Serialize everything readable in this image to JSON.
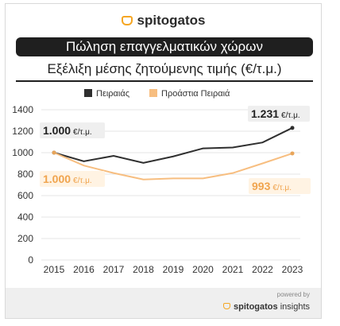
{
  "brand": {
    "name": "spitogatos"
  },
  "header": {
    "title": "Πώληση επαγγελματικών χώρων",
    "subtitle": "Εξέλιξη μέσης ζητούμενης τιμής (€/τ.μ.)"
  },
  "footer": {
    "powered": "powered by",
    "brand": "spitogatos",
    "suffix": "insights"
  },
  "colors": {
    "dark": "#2f2f2f",
    "light": "#f7be80",
    "grid": "#e6e6e6"
  },
  "chart_data": {
    "type": "line",
    "x": [
      2015,
      2016,
      2017,
      2018,
      2019,
      2020,
      2021,
      2022,
      2023
    ],
    "series": [
      {
        "name": "Πειραιάς",
        "values": [
          1000,
          920,
          970,
          905,
          965,
          1040,
          1048,
          1095,
          1231
        ]
      },
      {
        "name": "Προάστια Πειραιά",
        "values": [
          1000,
          880,
          810,
          750,
          760,
          760,
          810,
          900,
          993
        ]
      }
    ],
    "ylim": [
      0,
      1400
    ],
    "yticks": [
      0,
      200,
      400,
      600,
      800,
      1000,
      1200,
      1400
    ],
    "grid": true,
    "legend": "top",
    "annotations": [
      {
        "series": 0,
        "point": "start",
        "value": "1.000",
        "unit": "€/τ.μ."
      },
      {
        "series": 0,
        "point": "end",
        "value": "1.231",
        "unit": "€/τ.μ."
      },
      {
        "series": 1,
        "point": "start",
        "value": "1.000",
        "unit": "€/τ.μ."
      },
      {
        "series": 1,
        "point": "end",
        "value": "993",
        "unit": "€/τ.μ."
      }
    ]
  }
}
